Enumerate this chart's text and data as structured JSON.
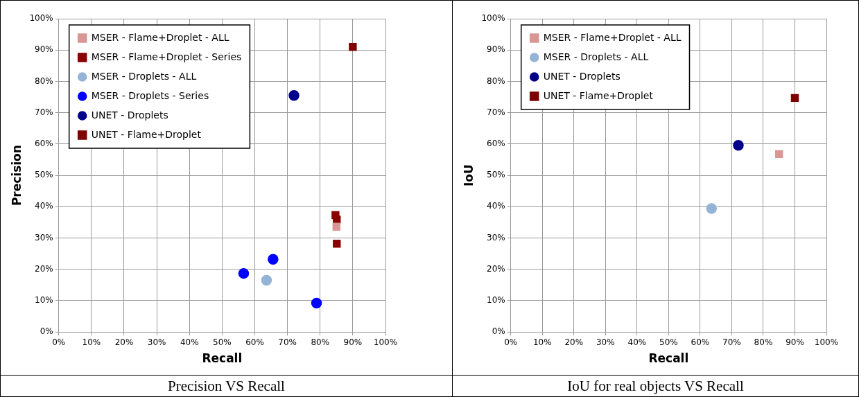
{
  "chart_data": [
    {
      "type": "scatter",
      "xlabel": "Recall",
      "ylabel": "Precision",
      "annotations": [
        "Precision VS Recall"
      ],
      "legend": "top left",
      "grid": true,
      "xlim": [
        0,
        100
      ],
      "ylim": [
        0,
        100
      ],
      "xticks": [
        {
          "value": 0,
          "label": "0%"
        },
        {
          "value": 10,
          "label": "10%"
        },
        {
          "value": 20,
          "label": "20%"
        },
        {
          "value": 30,
          "label": "30%"
        },
        {
          "value": 40,
          "label": "40%"
        },
        {
          "value": 50,
          "label": "50%"
        },
        {
          "value": 60,
          "label": "60%"
        },
        {
          "value": 70,
          "label": "70%"
        },
        {
          "value": 80,
          "label": "80%"
        },
        {
          "value": 90,
          "label": "90%"
        },
        {
          "value": 100,
          "label": "100%"
        }
      ],
      "yticks": [
        {
          "value": 0,
          "label": "0%"
        },
        {
          "value": 10,
          "label": "10%"
        },
        {
          "value": 20,
          "label": "20%"
        },
        {
          "value": 30,
          "label": "30%"
        },
        {
          "value": 40,
          "label": "40%"
        },
        {
          "value": 50,
          "label": "50%"
        },
        {
          "value": 60,
          "label": "60%"
        },
        {
          "value": 70,
          "label": "70%"
        },
        {
          "value": 80,
          "label": "80%"
        },
        {
          "value": 90,
          "label": "90%"
        },
        {
          "value": 100,
          "label": "100%"
        }
      ],
      "series": [
        {
          "name": "MSER - Flame+Droplet - ALL",
          "color": "#d99694",
          "marker": "square",
          "x": [
            85
          ],
          "values": [
            33.6
          ]
        },
        {
          "name": "MSER - Flame+Droplet - Series",
          "color": "#8b0000",
          "marker": "square",
          "x": [
            84.7,
            85.1,
            85.1
          ],
          "values": [
            37.3,
            35.9,
            28.2
          ]
        },
        {
          "name": "MSER - Droplets - ALL",
          "color": "#95b3d7",
          "marker": "circle",
          "x": [
            63.6
          ],
          "values": [
            16.5
          ]
        },
        {
          "name": "MSER - Droplets - Series",
          "color": "#0000ff",
          "marker": "circle",
          "x": [
            56.6,
            65.6,
            78.9
          ],
          "values": [
            18.7,
            23.2,
            9.2
          ]
        },
        {
          "name": "UNET - Droplets",
          "color": "#00008b",
          "marker": "circle",
          "x": [
            72
          ],
          "values": [
            75.5
          ]
        },
        {
          "name": "UNET - Flame+Droplet",
          "color": "#7f0000",
          "marker": "square",
          "x": [
            90
          ],
          "values": [
            91
          ]
        }
      ]
    },
    {
      "type": "scatter",
      "xlabel": "Recall",
      "ylabel": "IoU",
      "annotations": [
        "IoU for real objects VS Recall"
      ],
      "legend": "top left",
      "grid": true,
      "xlim": [
        0,
        100
      ],
      "ylim": [
        0,
        100
      ],
      "xticks": [
        {
          "value": 0,
          "label": "0%"
        },
        {
          "value": 10,
          "label": "10%"
        },
        {
          "value": 20,
          "label": "20%"
        },
        {
          "value": 30,
          "label": "30%"
        },
        {
          "value": 40,
          "label": "40%"
        },
        {
          "value": 50,
          "label": "50%"
        },
        {
          "value": 60,
          "label": "60%"
        },
        {
          "value": 70,
          "label": "70%"
        },
        {
          "value": 80,
          "label": "80%"
        },
        {
          "value": 90,
          "label": "90%"
        },
        {
          "value": 100,
          "label": "100%"
        }
      ],
      "yticks": [
        {
          "value": 0,
          "label": "0%"
        },
        {
          "value": 10,
          "label": "10%"
        },
        {
          "value": 20,
          "label": "20%"
        },
        {
          "value": 30,
          "label": "30%"
        },
        {
          "value": 40,
          "label": "40%"
        },
        {
          "value": 50,
          "label": "50%"
        },
        {
          "value": 60,
          "label": "60%"
        },
        {
          "value": 70,
          "label": "70%"
        },
        {
          "value": 80,
          "label": "80%"
        },
        {
          "value": 90,
          "label": "90%"
        },
        {
          "value": 100,
          "label": "100%"
        }
      ],
      "series": [
        {
          "name": "MSER - Flame+Droplet - ALL",
          "color": "#d99694",
          "marker": "square",
          "x": [
            85
          ],
          "values": [
            56.8
          ]
        },
        {
          "name": "MSER - Droplets - ALL",
          "color": "#95b3d7",
          "marker": "circle",
          "x": [
            63.6
          ],
          "values": [
            39.4
          ]
        },
        {
          "name": "UNET - Droplets",
          "color": "#00008b",
          "marker": "circle",
          "x": [
            72.1
          ],
          "values": [
            59.6
          ]
        },
        {
          "name": "UNET - Flame+Droplet",
          "color": "#7f0000",
          "marker": "square",
          "x": [
            90
          ],
          "values": [
            74.7
          ]
        }
      ]
    }
  ]
}
